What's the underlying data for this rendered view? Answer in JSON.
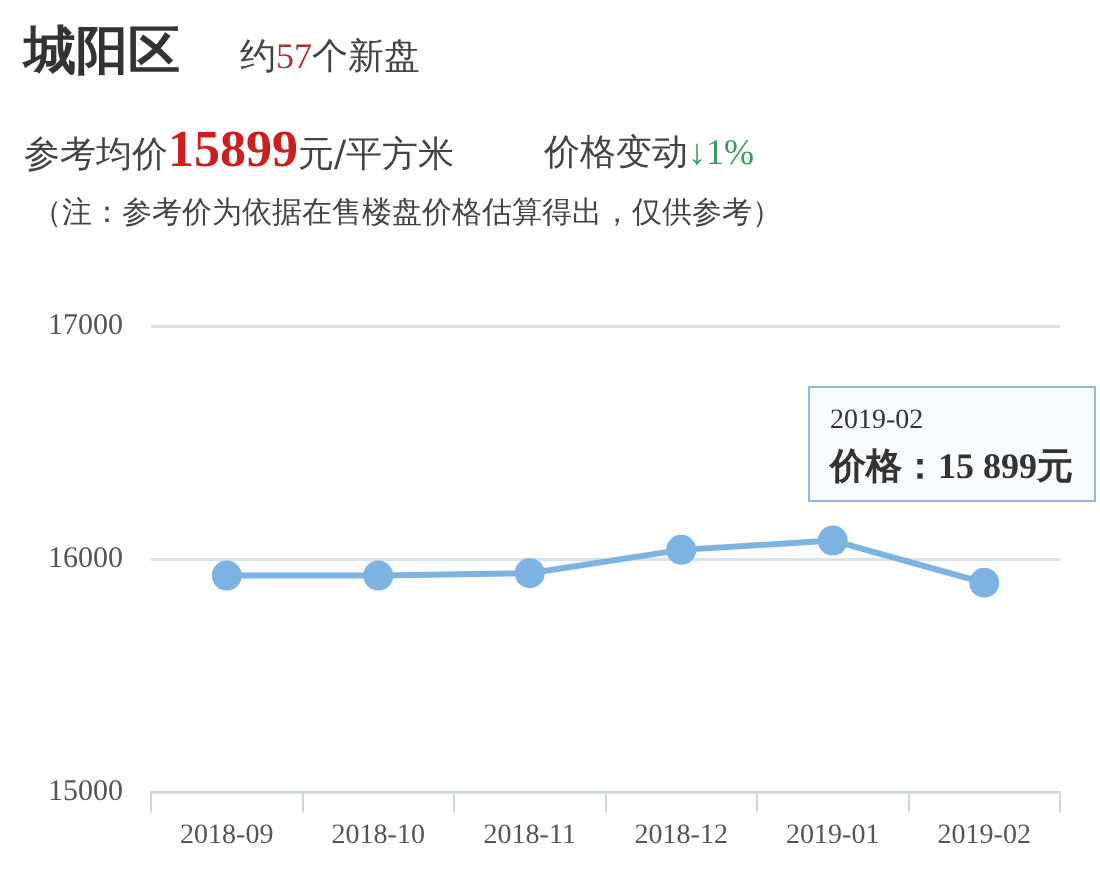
{
  "chart_data": {
    "type": "line",
    "title": "城阳区",
    "subtitle": "约57个新盘",
    "annotations": [
      "参考均价15899元/平方米",
      "价格变动↓1%",
      "（注：参考价为依据在售楼盘价格估算得出，仅供参考）",
      {
        "text": "2019-02\n价格：15 899元",
        "x": "2019-02",
        "y": 15899
      }
    ],
    "categories": [
      "2018-09",
      "2018-10",
      "2018-11",
      "2018-12",
      "2019-01",
      "2019-02"
    ],
    "series": [
      {
        "color": "#7db3e2",
        "values": [
          15930,
          15930,
          15940,
          16040,
          16080,
          15899
        ]
      }
    ],
    "ylim": [
      15000,
      17000
    ],
    "yticks": [
      15000,
      16000,
      17000
    ],
    "grid": "y",
    "legend": false,
    "marker": "circle",
    "line_style": "solid"
  }
}
